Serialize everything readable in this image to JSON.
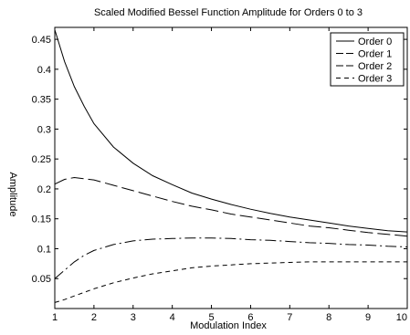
{
  "chart_data": {
    "type": "line",
    "title": "Scaled Modified Bessel Function Amplitude for Orders 0 to 3",
    "xlabel": "Modulation Index",
    "ylabel": "Amplitude",
    "xlim": [
      1,
      10
    ],
    "ylim": [
      0,
      0.47
    ],
    "xticks": [
      "1",
      "2",
      "3",
      "4",
      "5",
      "6",
      "7",
      "8",
      "9",
      "10"
    ],
    "yticks": [
      "0.05",
      "0.1",
      "0.15",
      "0.2",
      "0.25",
      "0.3",
      "0.35",
      "0.4",
      "0.45"
    ],
    "grid": false,
    "legend_position": "top-right",
    "x": [
      1,
      1.25,
      1.5,
      1.75,
      2,
      2.5,
      3,
      3.5,
      4,
      4.5,
      5,
      5.5,
      6,
      6.5,
      7,
      7.5,
      8,
      8.5,
      9,
      9.5,
      10
    ],
    "series": [
      {
        "name": "Order 0",
        "style": "solid",
        "values": [
          0.466,
          0.413,
          0.371,
          0.338,
          0.309,
          0.27,
          0.243,
          0.222,
          0.207,
          0.193,
          0.183,
          0.174,
          0.166,
          0.159,
          0.153,
          0.148,
          0.143,
          0.138,
          0.134,
          0.13,
          0.128
        ]
      },
      {
        "name": "Order 1",
        "style": "long-dash",
        "values": [
          0.208,
          0.216,
          0.219,
          0.217,
          0.215,
          0.206,
          0.197,
          0.188,
          0.179,
          0.171,
          0.165,
          0.158,
          0.153,
          0.148,
          0.143,
          0.138,
          0.135,
          0.131,
          0.127,
          0.124,
          0.121
        ]
      },
      {
        "name": "Order 2",
        "style": "dash-dot",
        "values": [
          0.05,
          0.064,
          0.078,
          0.089,
          0.097,
          0.107,
          0.113,
          0.116,
          0.117,
          0.118,
          0.118,
          0.117,
          0.115,
          0.114,
          0.112,
          0.11,
          0.109,
          0.107,
          0.106,
          0.104,
          0.103
        ]
      },
      {
        "name": "Order 3",
        "style": "short-dash",
        "values": [
          0.01,
          0.015,
          0.021,
          0.027,
          0.033,
          0.043,
          0.051,
          0.058,
          0.063,
          0.068,
          0.071,
          0.073,
          0.075,
          0.076,
          0.077,
          0.078,
          0.078,
          0.078,
          0.078,
          0.078,
          0.078
        ]
      }
    ]
  }
}
